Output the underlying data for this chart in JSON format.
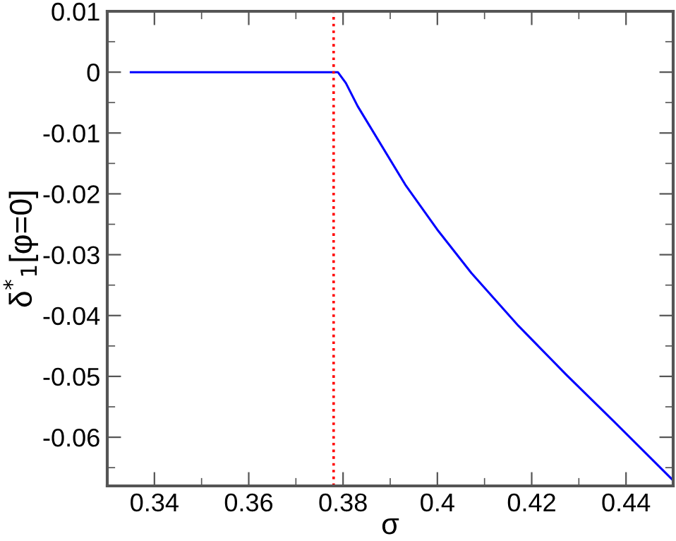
{
  "chart_data": {
    "type": "line",
    "xlabel": "σ",
    "ylabel": "δ$^{*}$$_{1}$[φ=0]",
    "x": [
      0.335,
      0.35,
      0.365,
      0.3775,
      0.3789,
      0.3806,
      0.3831,
      0.3932,
      0.4002,
      0.4072,
      0.4172,
      0.4273,
      0.4373,
      0.45
    ],
    "series": [
      {
        "color": "#0000ff",
        "values": [
          0,
          0,
          0,
          0,
          0,
          -0.0018,
          -0.0056,
          -0.0185,
          -0.0261,
          -0.033,
          -0.0417,
          -0.0497,
          -0.0573,
          -0.0671
        ]
      }
    ],
    "ref_lines": [
      {
        "axis": "x",
        "value": 0.378,
        "color": "#ff0000",
        "line_style": "dotted"
      }
    ],
    "xlim": [
      0.33,
      0.45
    ],
    "xticks": [
      0.34,
      0.36,
      0.38,
      0.4,
      0.42,
      0.44
    ],
    "ylim": [
      -0.068,
      0.01
    ],
    "yticks": [
      0.01,
      0,
      -0.01,
      -0.02,
      -0.03,
      -0.04,
      -0.05,
      -0.06
    ],
    "grid": false,
    "legend": false,
    "marker": "none",
    "line_style": "solid"
  }
}
